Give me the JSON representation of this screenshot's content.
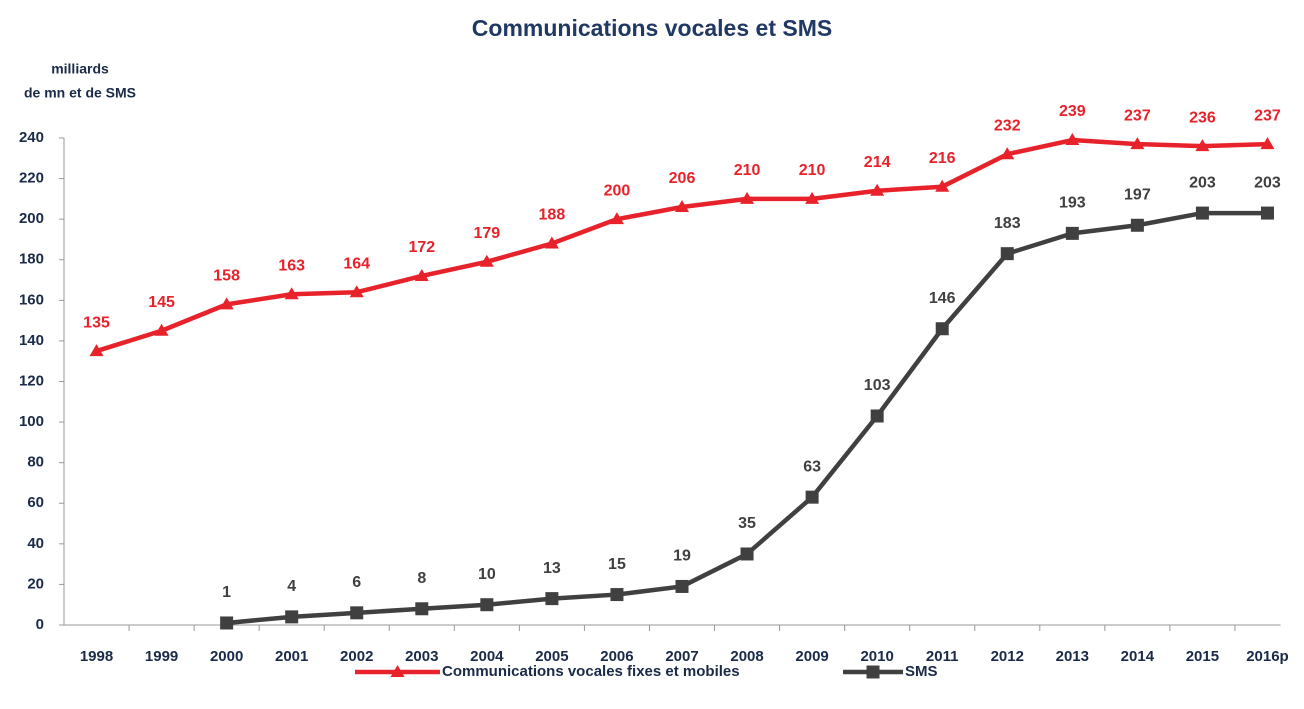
{
  "chart_data": {
    "type": "line",
    "title": "Communications vocales et SMS",
    "y_label": [
      "milliards",
      "de mn et  de SMS"
    ],
    "categories": [
      "1998",
      "1999",
      "2000",
      "2001",
      "2002",
      "2003",
      "2004",
      "2005",
      "2006",
      "2007",
      "2008",
      "2009",
      "2010",
      "2011",
      "2012",
      "2013",
      "2014",
      "2015",
      "2016p"
    ],
    "series": [
      {
        "name": "Communications vocales fixes et mobiles",
        "color": "#e8222a",
        "marker": "triangle",
        "values": [
          135,
          145,
          158,
          163,
          164,
          172,
          179,
          188,
          200,
          206,
          210,
          210,
          214,
          216,
          232,
          239,
          237,
          236,
          237
        ]
      },
      {
        "name": "SMS",
        "color": "#404040",
        "marker": "square",
        "values": [
          null,
          null,
          1,
          4,
          6,
          8,
          10,
          13,
          15,
          19,
          35,
          63,
          103,
          146,
          183,
          193,
          197,
          203,
          203
        ]
      }
    ],
    "ylim": [
      0,
      240
    ],
    "yticks": [
      0,
      20,
      40,
      60,
      80,
      100,
      120,
      140,
      160,
      180,
      200,
      220,
      240
    ],
    "grid": false,
    "legend": "bottom"
  }
}
